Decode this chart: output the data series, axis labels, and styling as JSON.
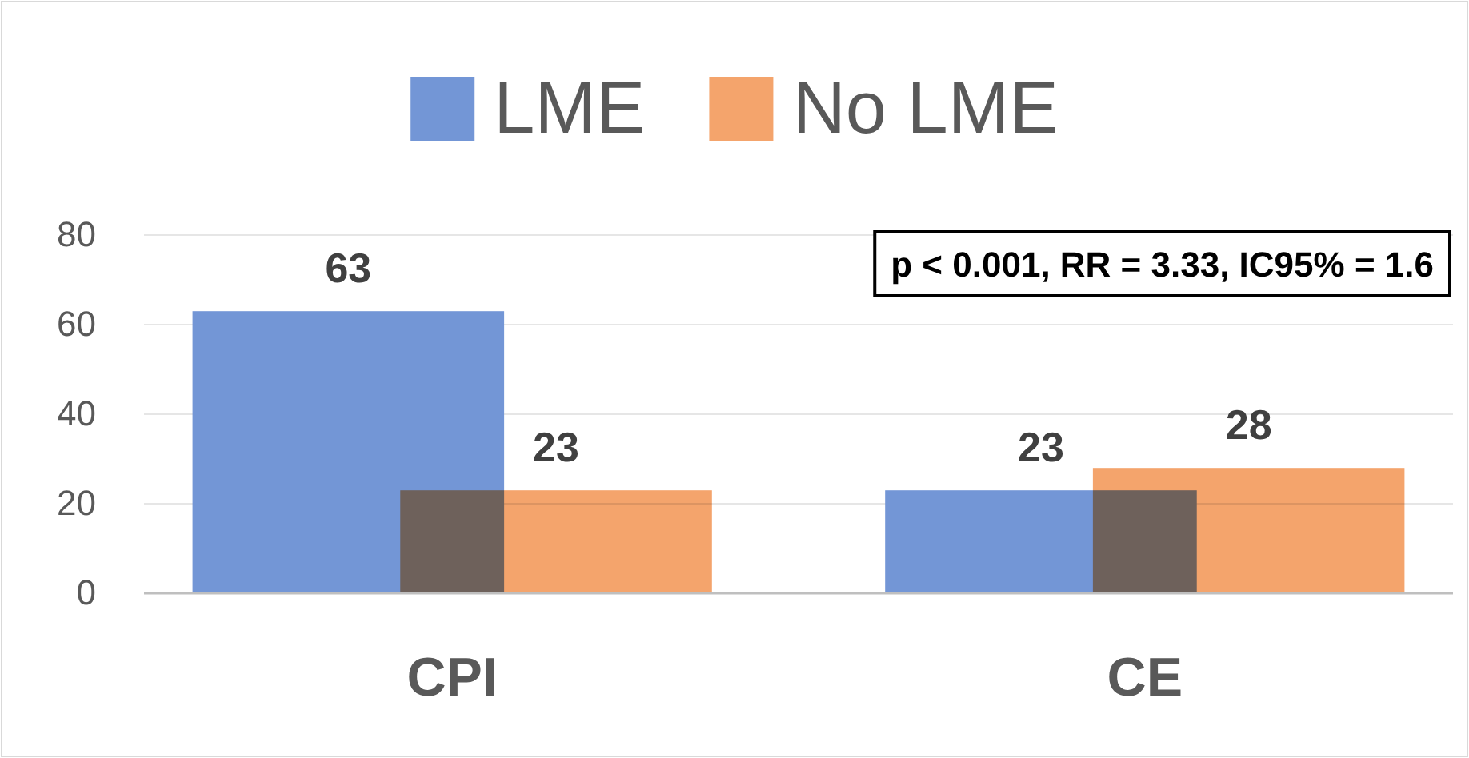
{
  "chart_data": {
    "type": "bar",
    "categories": [
      "CPI",
      "CE"
    ],
    "series": [
      {
        "name": "LME",
        "color": "#7396d6",
        "values": [
          63,
          23
        ]
      },
      {
        "name": "No LME",
        "color": "#f4a46c",
        "values": [
          23,
          28
        ]
      }
    ],
    "ylim": [
      0,
      80
    ],
    "yticks": [
      0,
      20,
      40,
      60,
      80
    ],
    "grid": "y",
    "legend": "top",
    "data_labels": true,
    "annotations": [
      "p < 0.001, RR = 3.33, IC95% = 1.6"
    ]
  }
}
